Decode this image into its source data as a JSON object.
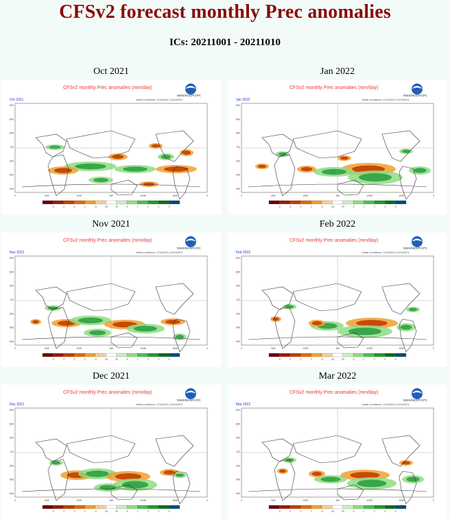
{
  "header": {
    "title": "CFSv2 forecast monthly Prec anomalies",
    "ics": "ICs: 20211001 - 20211010"
  },
  "panel_common": {
    "plot_title": "CFSv2 monthly Prec anomalies (mm/day)",
    "agency": "NWS/NCEP/CPC",
    "ic_note": "initial conditions: 1Oct2021-10Oct2021",
    "lat_labels": [
      "90N",
      "60N",
      "30N",
      "EQ",
      "30S",
      "60S",
      "90S"
    ],
    "lon_labels": [
      "0",
      "60E",
      "120E",
      "180",
      "120W",
      "60W",
      "0"
    ],
    "colorbar_colors": [
      "#6b0000",
      "#9c1b00",
      "#c23e00",
      "#e06b00",
      "#f0a030",
      "#f7d08a",
      "#ffffff",
      "#c9f0c0",
      "#8fdc82",
      "#4fc04a",
      "#1f9a2a",
      "#0a6e1e",
      "#004b78"
    ],
    "colorbar_ticks": [
      "-5",
      "-3",
      "-2",
      "-1",
      "-.5",
      "-.25",
      ".25",
      ".5",
      "1",
      "2",
      "3",
      "5"
    ]
  },
  "panels": [
    {
      "label": "Oct 2021",
      "tag": "Oct 2021"
    },
    {
      "label": "Jan 2022",
      "tag": "Jan 2022"
    },
    {
      "label": "Nov 2021",
      "tag": "Nov 2021"
    },
    {
      "label": "Feb 2022",
      "tag": "Feb 2022"
    },
    {
      "label": "Dec 2021",
      "tag": "Dec 2021"
    },
    {
      "label": "Mar 2022",
      "tag": "Mar 2022"
    }
  ],
  "colors": {
    "title": "#8b0a0a",
    "wet": "#2ea043",
    "wet_light": "#8fdc82",
    "dry": "#c23e00",
    "dry_light": "#f0a030"
  }
}
